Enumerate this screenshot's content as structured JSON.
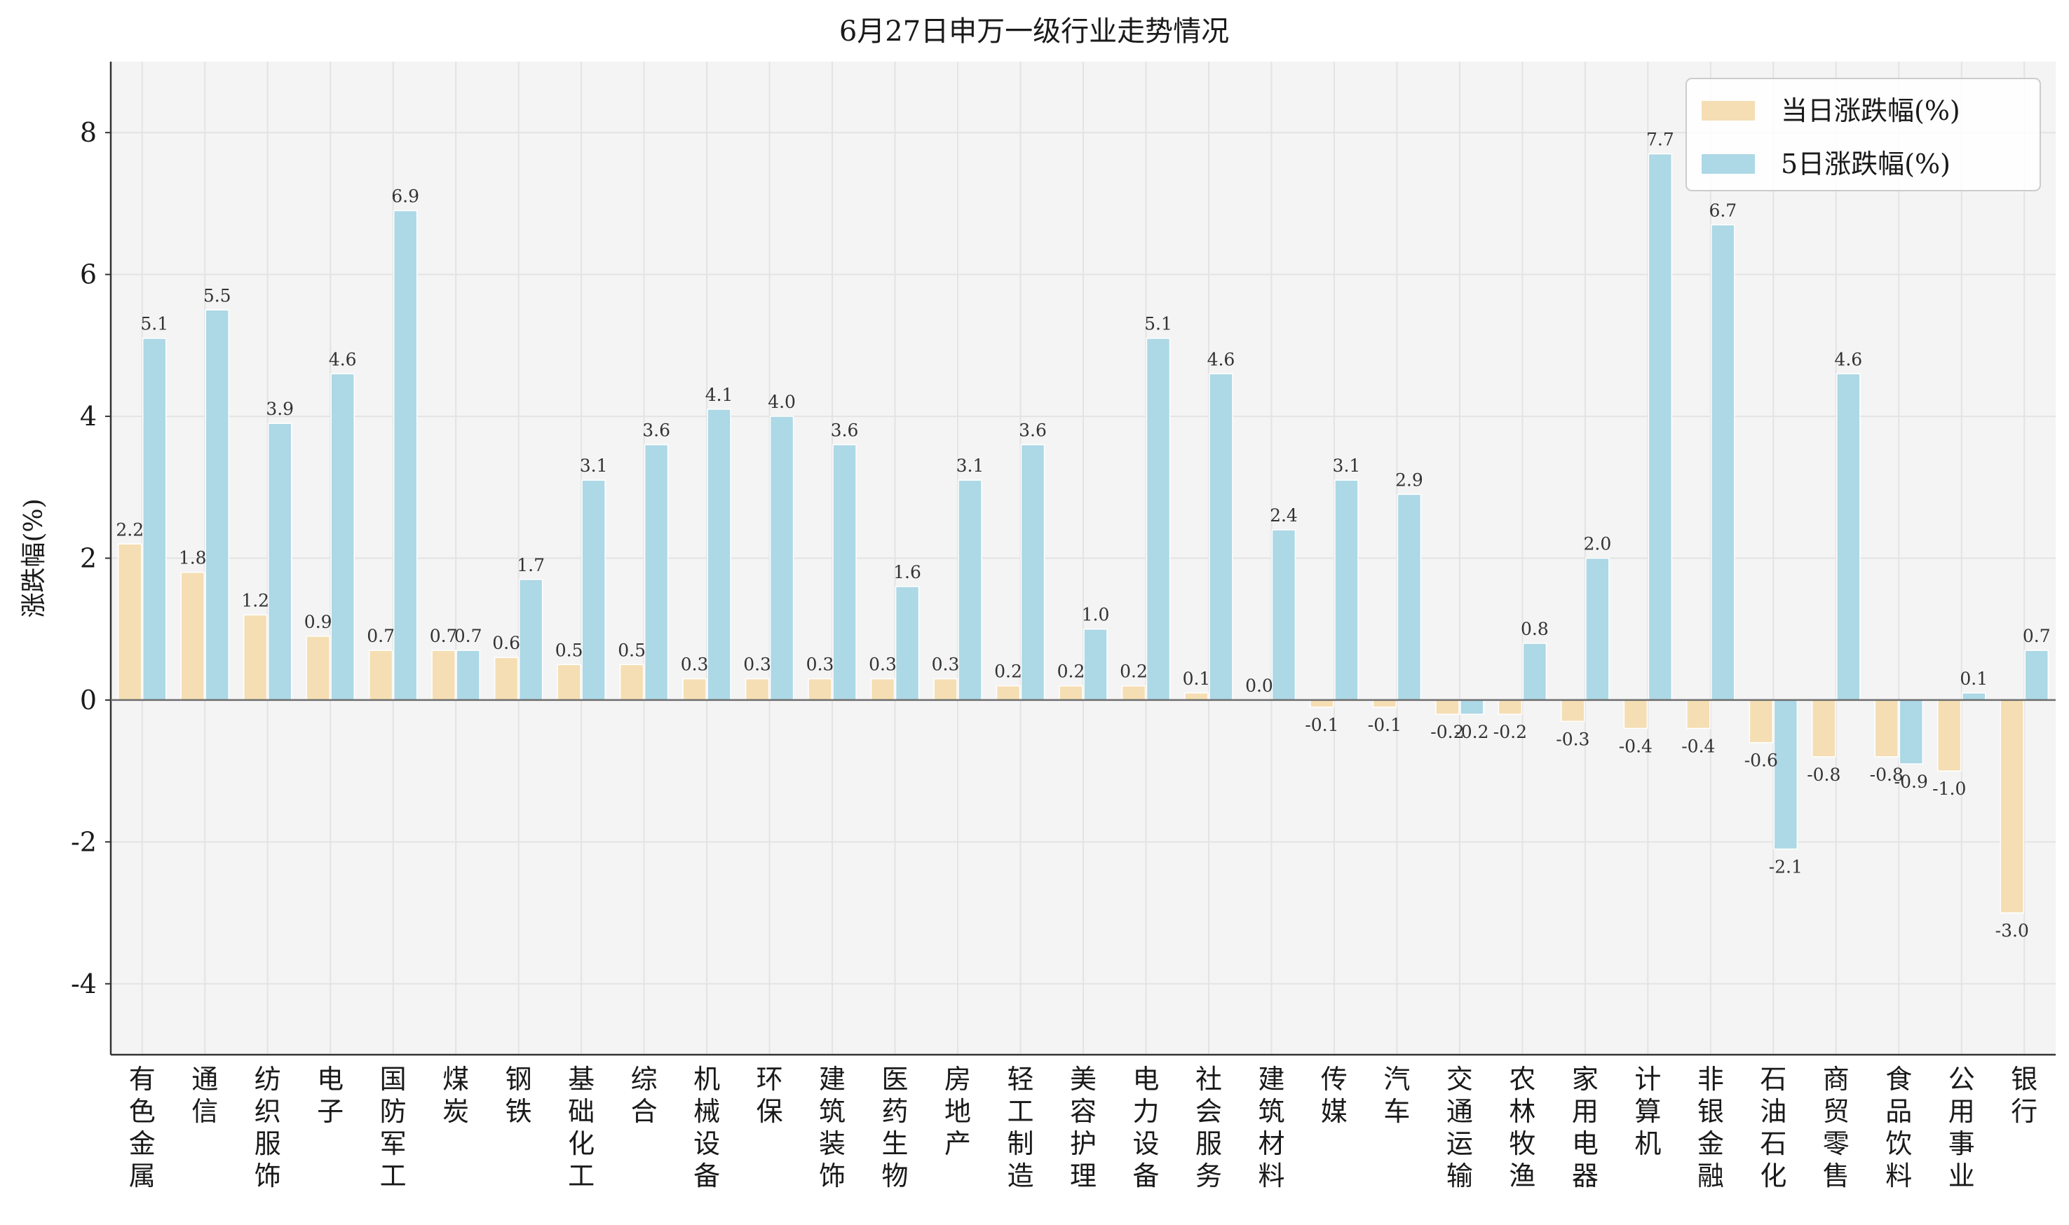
{
  "chart_data": {
    "type": "bar",
    "title": "6月27日申万一级行业走势情况",
    "ylabel": "涨跌幅(%)",
    "xlabel": "",
    "ylim": [
      -5,
      9
    ],
    "yticks": [
      -4,
      -2,
      0,
      2,
      4,
      6,
      8
    ],
    "grid": true,
    "legend_position": "top-right",
    "categories": [
      "有色金属",
      "通信",
      "纺织服饰",
      "电子",
      "国防军工",
      "煤炭",
      "钢铁",
      "基础化工",
      "综合",
      "机械设备",
      "环保",
      "建筑装饰",
      "医药生物",
      "房地产",
      "轻工制造",
      "美容护理",
      "电力设备",
      "社会服务",
      "建筑材料",
      "传媒",
      "汽车",
      "交通运输",
      "农林牧渔",
      "家用电器",
      "计算机",
      "非银金融",
      "石油石化",
      "商贸零售",
      "食品饮料",
      "公用事业",
      "银行"
    ],
    "series": [
      {
        "name": "当日涨跌幅(%)",
        "color": "#f5deb3",
        "values": [
          2.2,
          1.8,
          1.2,
          0.9,
          0.7,
          0.7,
          0.6,
          0.5,
          0.5,
          0.3,
          0.3,
          0.3,
          0.3,
          0.3,
          0.2,
          0.2,
          0.2,
          0.1,
          0.0,
          -0.1,
          -0.1,
          -0.2,
          -0.2,
          -0.3,
          -0.4,
          -0.4,
          -0.6,
          -0.8,
          -0.8,
          -1.0,
          -3.0
        ]
      },
      {
        "name": "5日涨跌幅(%)",
        "color": "#add8e6",
        "values": [
          5.1,
          5.5,
          3.9,
          4.6,
          6.9,
          0.7,
          1.7,
          3.1,
          3.6,
          4.1,
          4.0,
          3.6,
          1.6,
          3.1,
          3.6,
          1.0,
          5.1,
          4.6,
          2.4,
          3.1,
          2.9,
          -0.2,
          0.8,
          2.0,
          7.7,
          6.7,
          -2.1,
          4.6,
          -0.9,
          0.1,
          0.7
        ]
      }
    ]
  },
  "colors": {
    "plot_background": "#f4f4f4",
    "grid": "#e3e3e3",
    "axis": "#333333"
  }
}
